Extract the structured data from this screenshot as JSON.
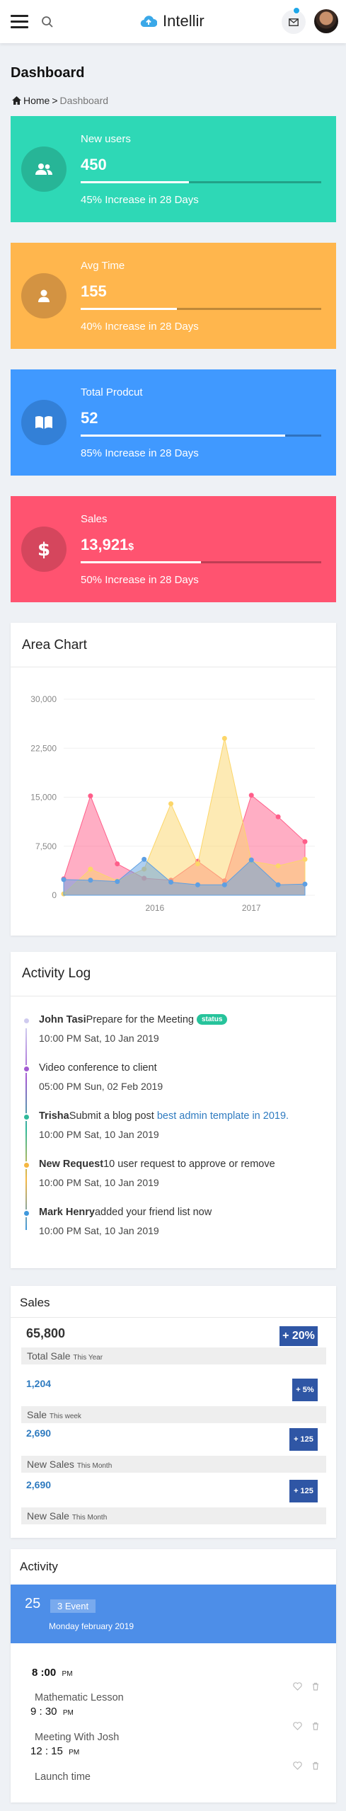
{
  "header": {
    "brand": "Intellir"
  },
  "page": {
    "title": "Dashboard",
    "breadcrumb_home": "Home",
    "breadcrumb_sep": ">",
    "breadcrumb_current": "Dashboard"
  },
  "stats": [
    {
      "label": "New users",
      "value": "450",
      "unit": "",
      "progress": 0.45,
      "sub": "45% Increase in 28 Days",
      "color": "#2ed8b6",
      "circle": "#27b597",
      "icon": "users-icon"
    },
    {
      "label": "Avg Time",
      "value": "155",
      "unit": "",
      "progress": 0.4,
      "sub": "40% Increase in 28 Days",
      "color": "#ffb64d",
      "circle": "#d39342",
      "icon": "user-icon"
    },
    {
      "label": "Total Prodcut",
      "value": "52",
      "unit": "",
      "progress": 0.85,
      "sub": "85% Increase in 28 Days",
      "color": "#4099ff",
      "circle": "#3380d7",
      "icon": "book-icon"
    },
    {
      "label": "Sales",
      "value": "13,921",
      "unit": "$",
      "progress": 0.5,
      "sub": "50% Increase in 28 Days",
      "color": "#ff5370",
      "circle": "#d5465d",
      "icon": "dollar-icon"
    }
  ],
  "area_chart": {
    "title": "Area Chart"
  },
  "chart_data": {
    "type": "area",
    "title": "Area Chart",
    "yticks": [
      "30,000",
      "22,500",
      "15,000",
      "7,500",
      "0"
    ],
    "ylim": [
      0,
      30000
    ],
    "xticks": [
      "2016",
      "2017"
    ],
    "x": [
      0,
      1,
      2,
      3,
      4,
      5,
      6,
      7,
      8,
      9
    ],
    "series": [
      {
        "color": "#ff5e8a",
        "values": [
          2500,
          15200,
          4800,
          2600,
          2300,
          5200,
          2200,
          15300,
          12000,
          8200
        ]
      },
      {
        "color": "#fcd669",
        "values": [
          200,
          4000,
          2200,
          4000,
          14000,
          4800,
          24000,
          5200,
          4500,
          5500
        ]
      },
      {
        "color": "#5d9fe3",
        "values": [
          2400,
          2300,
          2100,
          5500,
          2000,
          1600,
          1600,
          5400,
          1600,
          1700
        ]
      }
    ],
    "grid": true
  },
  "activity_log": {
    "title": "Activity Log",
    "items": [
      {
        "bold": "John Tasi",
        "text": "Prepare for the Meeting",
        "badge": "status",
        "link": "",
        "time": "10:00 PM Sat, 10 Jan 2019",
        "color": "#cfcbef"
      },
      {
        "bold": "",
        "text": "Video conference to client",
        "badge": "",
        "link": "",
        "time": "05:00 PM Sun, 02 Feb 2019",
        "color": "#a25ad2"
      },
      {
        "bold": "Trisha",
        "text": "Submit a blog post ",
        "badge": "",
        "link": "best admin template in 2019.",
        "time": "10:00 PM Sat, 10 Jan 2019",
        "color": "#2fb99a"
      },
      {
        "bold": "New Request",
        "text": "10 user request to approve or remove",
        "badge": "",
        "link": "",
        "time": "10:00 PM Sat, 10 Jan 2019",
        "color": "#f5b741"
      },
      {
        "bold": "Mark Henry",
        "text": "added your friend list now",
        "badge": "",
        "link": "",
        "time": "10:00 PM Sat, 10 Jan 2019",
        "color": "#4099dd"
      }
    ]
  },
  "sales": {
    "title": "Sales",
    "rows": [
      {
        "value": "65,800",
        "label": "Total Sale",
        "period": "This Year",
        "pill": "+ 20%"
      },
      {
        "value": "1,204",
        "label": "Sale",
        "period": "This week",
        "pill": "+ 5%"
      },
      {
        "value": "2,690",
        "label": "New Sales",
        "period": "This Month",
        "pill": "+ 125"
      },
      {
        "value": "2,690",
        "label": "New Sale",
        "period": "This Month",
        "pill": "+ 125"
      }
    ]
  },
  "activity": {
    "title": "Activity",
    "day": "25",
    "event_badge": "3 Event",
    "date": "Monday february 2019",
    "events": [
      {
        "time": "8 :00",
        "ampm": "PM",
        "title": "Mathematic Lesson"
      },
      {
        "time": "9 : 30",
        "ampm": "PM",
        "title": "Meeting With Josh"
      },
      {
        "time": "12 : 15",
        "ampm": "PM",
        "title": "Launch time"
      }
    ]
  }
}
